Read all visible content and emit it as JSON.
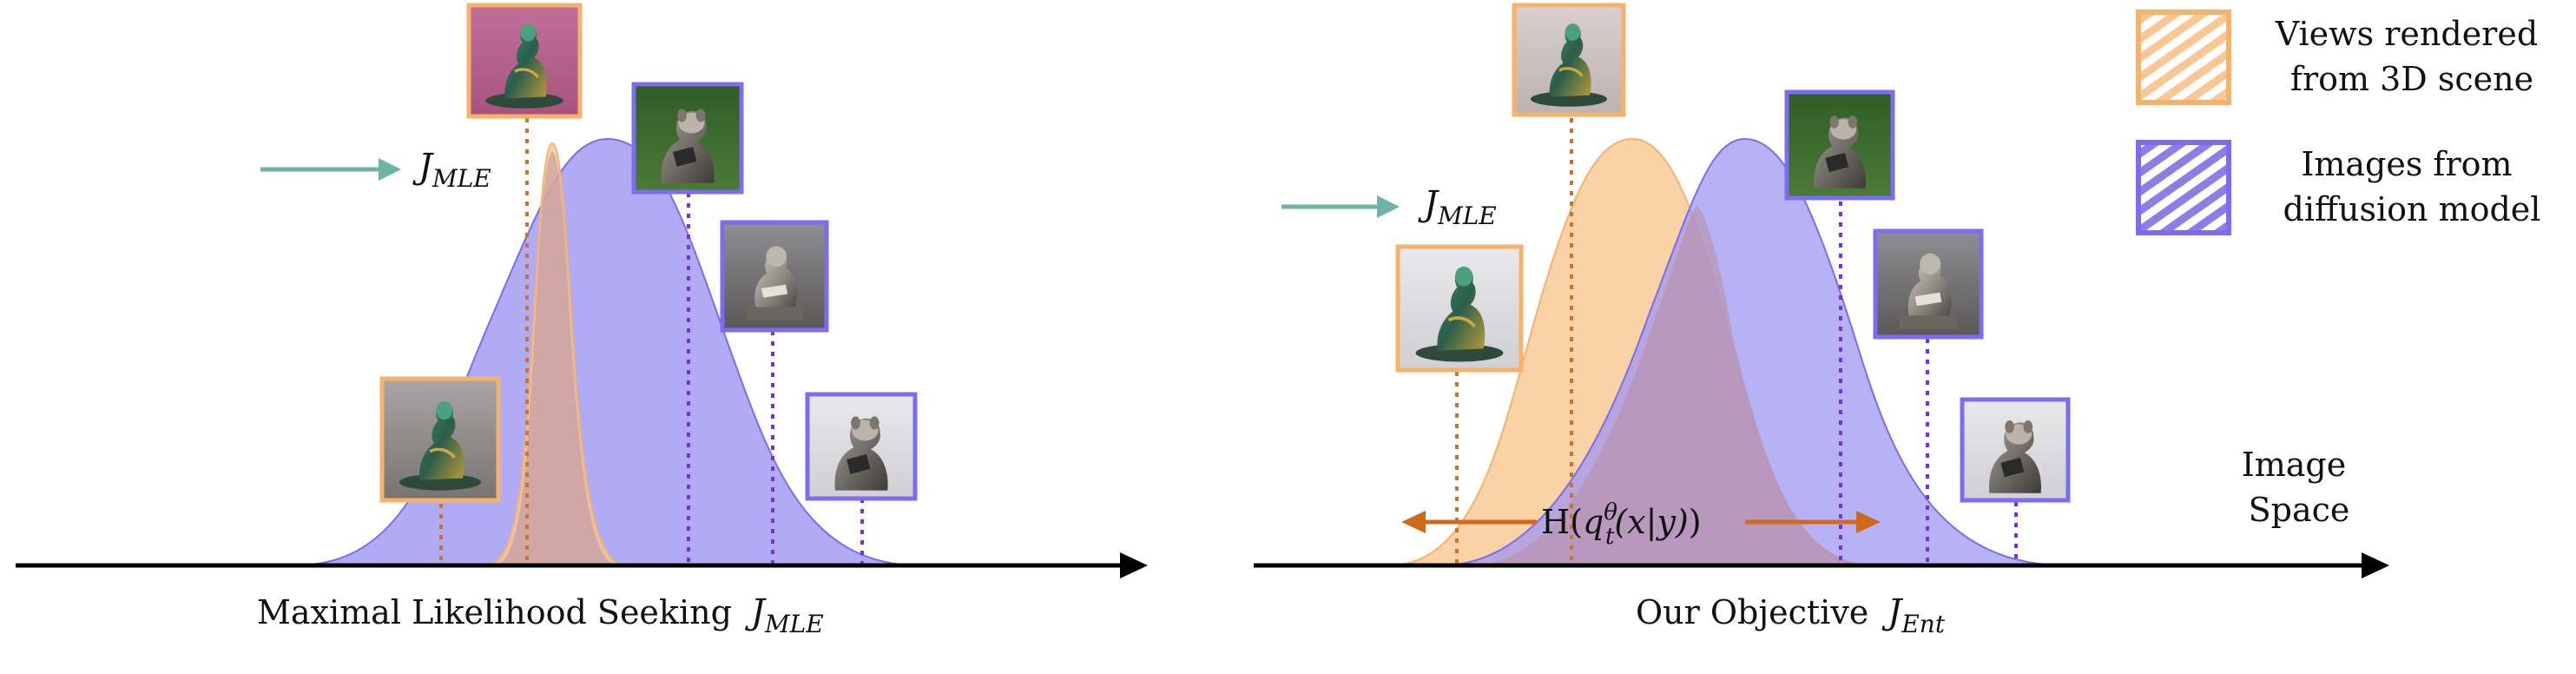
{
  "panels": {
    "left": {
      "caption": "Maximal Likelihood Seeking",
      "objective": {
        "symbol": "J",
        "subscript": "MLE"
      },
      "arrow_label": {
        "symbol": "J",
        "subscript": "MLE"
      }
    },
    "right": {
      "caption": "Our Objective",
      "objective": {
        "symbol": "J",
        "subscript": "Ent"
      },
      "arrow_label": {
        "symbol": "J",
        "subscript": "MLE"
      },
      "entropy_label": {
        "prefix": "H(",
        "q": "q",
        "q_sub": "t",
        "q_sup": "θ",
        "args": "(x|y)",
        "suffix": ")"
      }
    }
  },
  "axis_label": {
    "line1": "Image",
    "line2": "Space"
  },
  "legend": {
    "items": [
      {
        "line1": "Views rendered",
        "line2": "from 3D scene",
        "color": "#f5b26b"
      },
      {
        "line1": "Images from",
        "line2": "diffusion model",
        "color": "#7b6cf0"
      }
    ]
  },
  "colors": {
    "rendered": "#f5b26b",
    "rendered_fill": "#f8c891",
    "diffusion": "#7b6cf0",
    "diffusion_fill": "#9b94f2",
    "rendered_line": "#c8742a",
    "diffusion_line": "#7a30e0",
    "mle_arrow": "#6fb3a8",
    "entropy_arrow": "#d06a1a",
    "axis": "#000000"
  }
}
